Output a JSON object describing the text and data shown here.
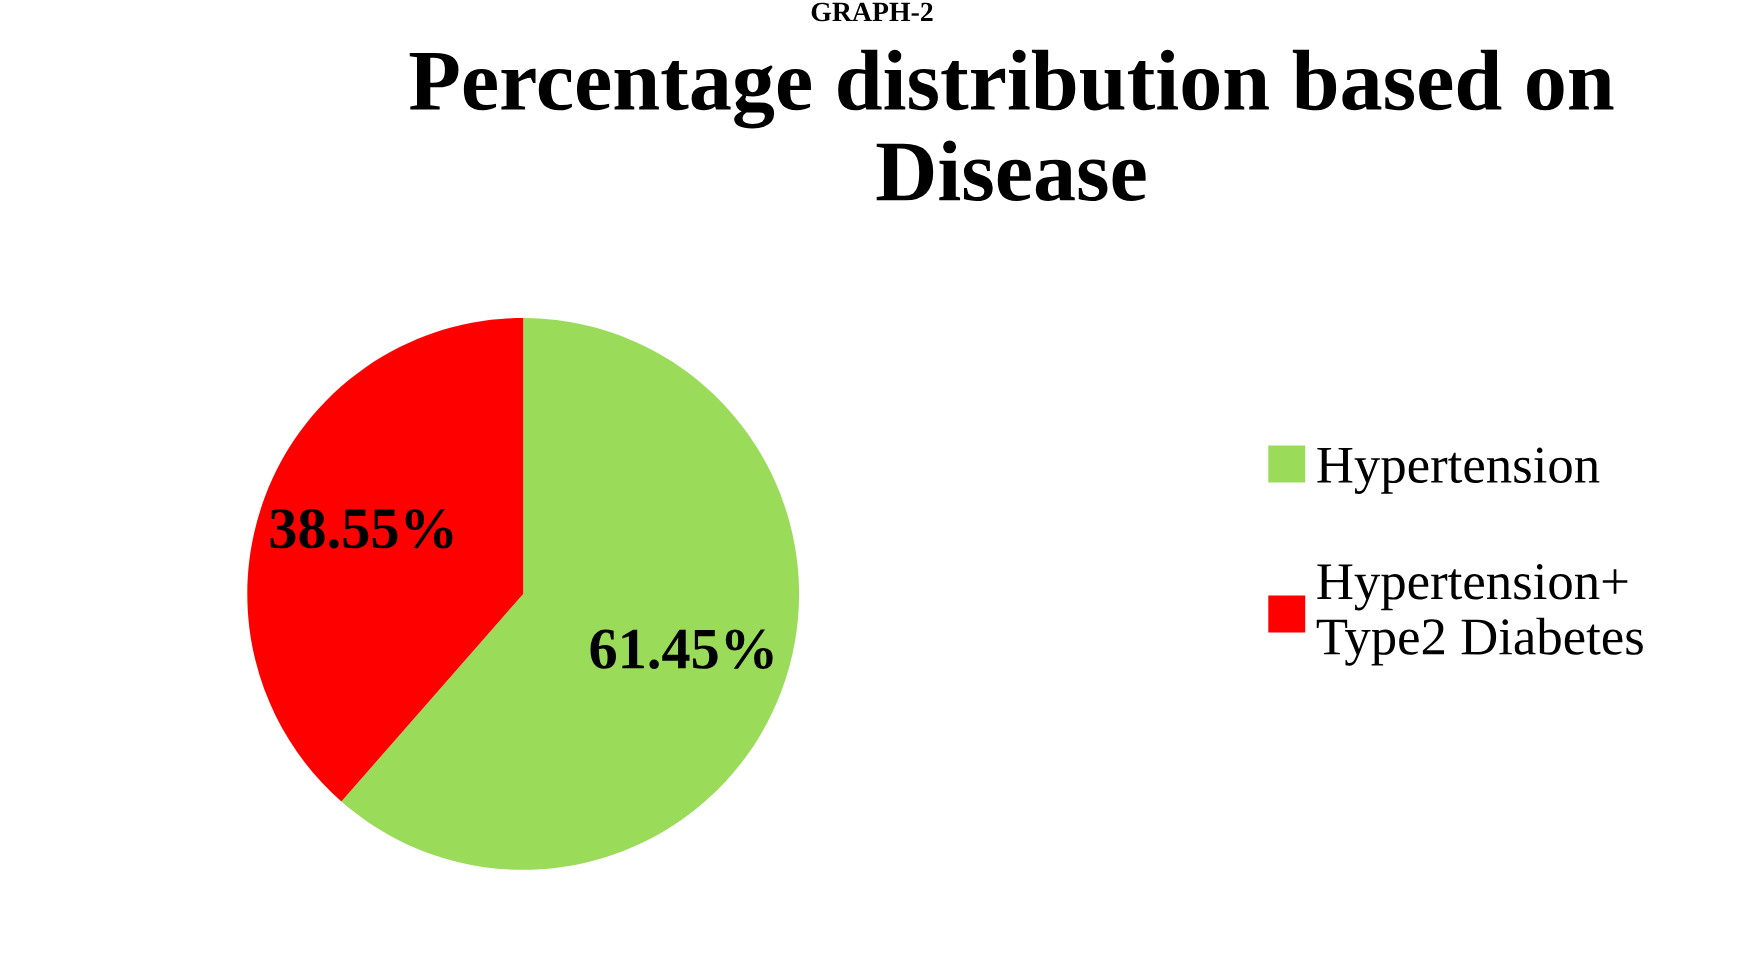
{
  "chart_data": {
    "type": "pie",
    "title": "Percentage distribution based on Disease",
    "categories": [
      "Hypertension",
      "Hypertension+\nType2 Diabetes"
    ],
    "values": [
      61.45,
      38.55
    ],
    "colors": [
      "#9bdb5a",
      "#ff0000"
    ],
    "value_labels": [
      "61.45%",
      "38.55%"
    ],
    "legend": "right",
    "annotations": [
      "GRAPH-2"
    ]
  }
}
